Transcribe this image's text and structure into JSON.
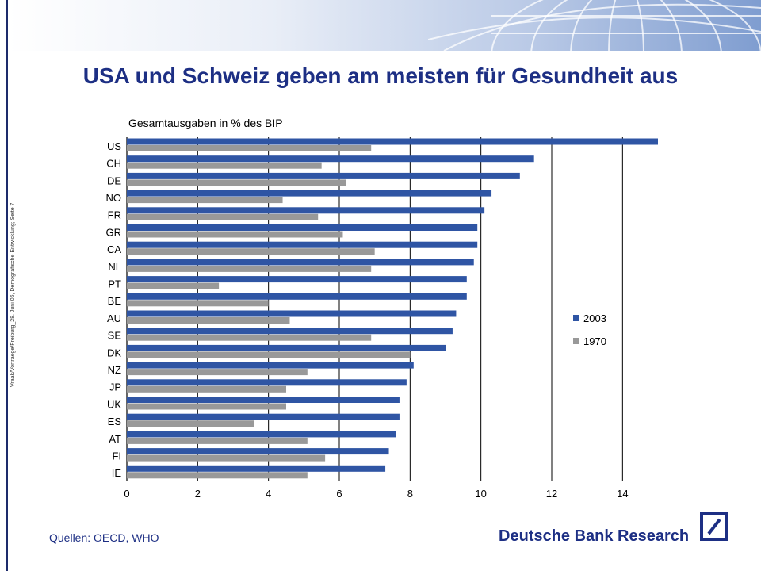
{
  "header": {
    "title": "USA und Schweiz geben am meisten für Gesundheit aus"
  },
  "side_note": "Vraak/Vortraege/Freiburg_28. Juni 06, Demografische Entwicklung; Seite 7",
  "footer": {
    "source": "Quellen: OECD, WHO",
    "brand": "Deutsche Bank Research"
  },
  "colors": {
    "series2003": "#2f55a4",
    "series1970": "#999999",
    "title": "#1d2f84"
  },
  "chart_data": {
    "type": "bar",
    "orientation": "horizontal",
    "title": "Gesamtausgaben in % des BIP",
    "categories": [
      "US",
      "CH",
      "DE",
      "NO",
      "FR",
      "GR",
      "CA",
      "NL",
      "PT",
      "BE",
      "AU",
      "SE",
      "DK",
      "NZ",
      "JP",
      "UK",
      "ES",
      "AT",
      "FI",
      "IE"
    ],
    "series": [
      {
        "name": "2003",
        "values": [
          15.0,
          11.5,
          11.1,
          10.3,
          10.1,
          9.9,
          9.9,
          9.8,
          9.6,
          9.6,
          9.3,
          9.2,
          9.0,
          8.1,
          7.9,
          7.7,
          7.7,
          7.6,
          7.4,
          7.3
        ]
      },
      {
        "name": "1970",
        "values": [
          6.9,
          5.5,
          6.2,
          4.4,
          5.4,
          6.1,
          7.0,
          6.9,
          2.6,
          4.0,
          4.6,
          6.9,
          8.0,
          5.1,
          4.5,
          4.5,
          3.6,
          5.1,
          5.6,
          5.1
        ]
      }
    ],
    "xlim": [
      0,
      15
    ],
    "xticks": [
      0,
      2,
      4,
      6,
      8,
      10,
      12,
      14
    ],
    "xtick_labels": [
      "0",
      "2",
      "4",
      "6",
      "8",
      "10",
      "12",
      "14"
    ],
    "grid": true,
    "legend_position": "right"
  }
}
